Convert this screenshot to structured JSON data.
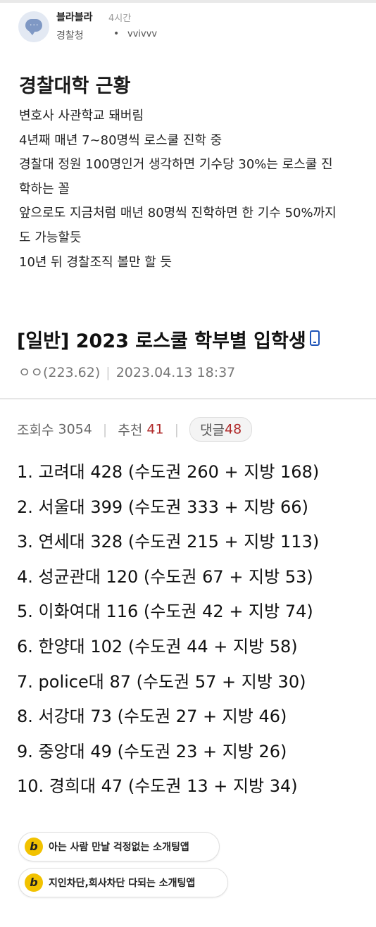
{
  "header": {
    "author": "블라블라",
    "time": "4시간",
    "company": "경찰청",
    "separator": "•",
    "nickname": "vvivvv",
    "avatar_icon": "chat-bubble-icon"
  },
  "post": {
    "title": "경찰대학 근황",
    "lines": [
      "변호사 사관학교 돼버림",
      "4년째 매년 7~80명씩 로스쿨 진학 중",
      "경찰대 정원 100명인거 생각하면 기수당 30%는 로스쿨 진",
      "학하는 꼴",
      "앞으로도 지금처럼 매년 80명씩 진학하면 한 기수 50%까지",
      "도 가능할듯",
      "10년 뒤 경찰조직 볼만 할 듯"
    ]
  },
  "article": {
    "title": "[일반] 2023 로스쿨 학부별 입학생",
    "device_icon": "mobile-phone-icon",
    "writer": "ㅇㅇ(223.62)",
    "date": "2023.04.13 18:37",
    "views_label": "조회수",
    "views": "3054",
    "recommend_label": "추천",
    "recommend": "41",
    "comments_label": "댓글",
    "comments": "48",
    "ranking": [
      "1. 고려대 428 (수도권 260 + 지방 168)",
      "2. 서울대 399 (수도권 333 + 지방 66)",
      "3. 연세대 328 (수도권 215 + 지방 113)",
      "4. 성균관대 120 (수도권 67 + 지방 53)",
      "5. 이화여대 116 (수도권 42 + 지방 74)",
      "6. 한양대 102 (수도권 44 + 지방 58)",
      "7. police대 87 (수도권 57 + 지방 30)",
      "8. 서강대 73 (수도권 27 + 지방 46)",
      "9. 중앙대 49 (수도권 23 + 지방 26)",
      "10. 경희대 47 (수도권 13 + 지방 34)"
    ]
  },
  "ads": [
    {
      "badge": "b",
      "label": "아는 사람 만날 걱정없는 소개팅앱"
    },
    {
      "badge": "b",
      "label": "지인차단,회사차단 다되는 소개팅앱"
    }
  ],
  "colors": {
    "accent_red": "#b02a2a",
    "badge_yellow": "#f2c200",
    "device_blue": "#1f55b8"
  }
}
